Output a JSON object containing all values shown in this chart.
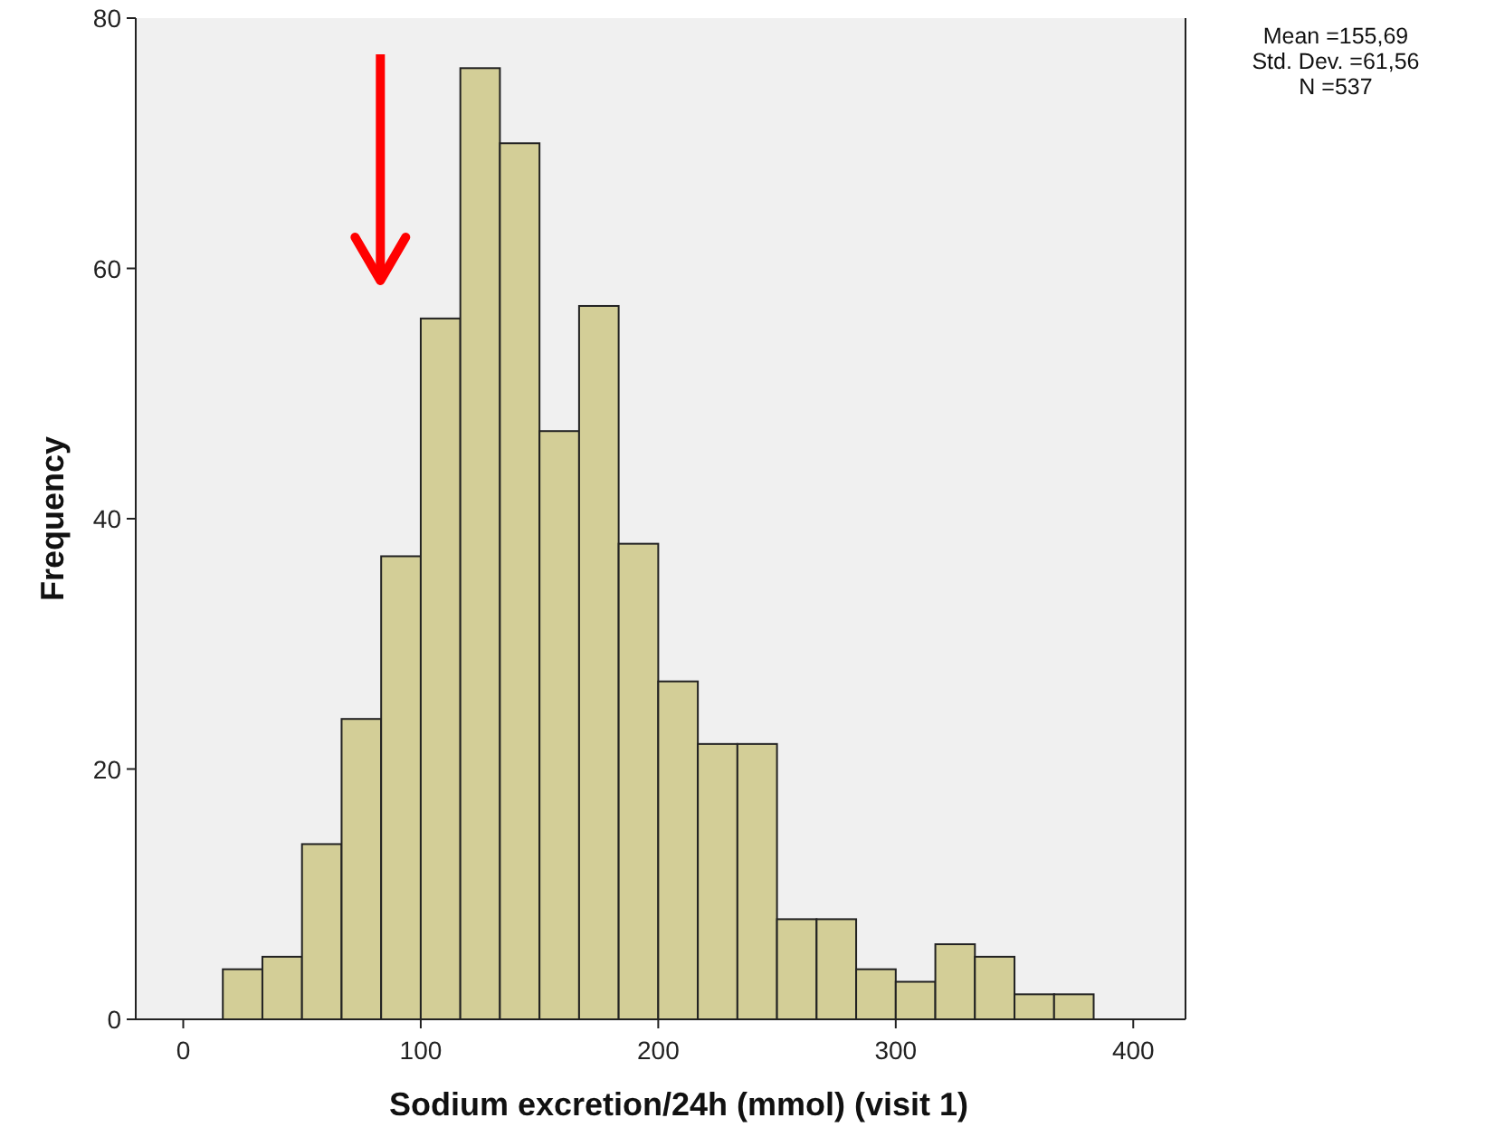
{
  "chart_data": {
    "type": "histogram",
    "xlabel": "Sodium excretion/24h (mmol) (visit 1)",
    "ylabel": "Frequency",
    "bins": [
      16.67,
      33.33,
      50,
      66.67,
      83.33,
      100,
      116.67,
      133.33,
      150,
      166.67,
      183.33,
      200,
      216.67,
      233.33,
      250,
      266.67,
      283.33,
      300,
      316.67,
      333.33,
      350,
      366.67,
      383.33
    ],
    "values": [
      4,
      5,
      14,
      24,
      37,
      56,
      76,
      70,
      47,
      57,
      38,
      27,
      22,
      22,
      8,
      8,
      4,
      3,
      6,
      5,
      2,
      2
    ],
    "color": "#d3ce97",
    "xlim": [
      -20,
      422
    ],
    "xticks": [
      0,
      100,
      200,
      300,
      400
    ],
    "ylim": [
      0,
      80
    ],
    "yticks": [
      0,
      20,
      40,
      60,
      80
    ],
    "grid": false,
    "annotations": [
      "Mean =155,69",
      "Std. Dev. =61,56",
      "N =537"
    ]
  }
}
